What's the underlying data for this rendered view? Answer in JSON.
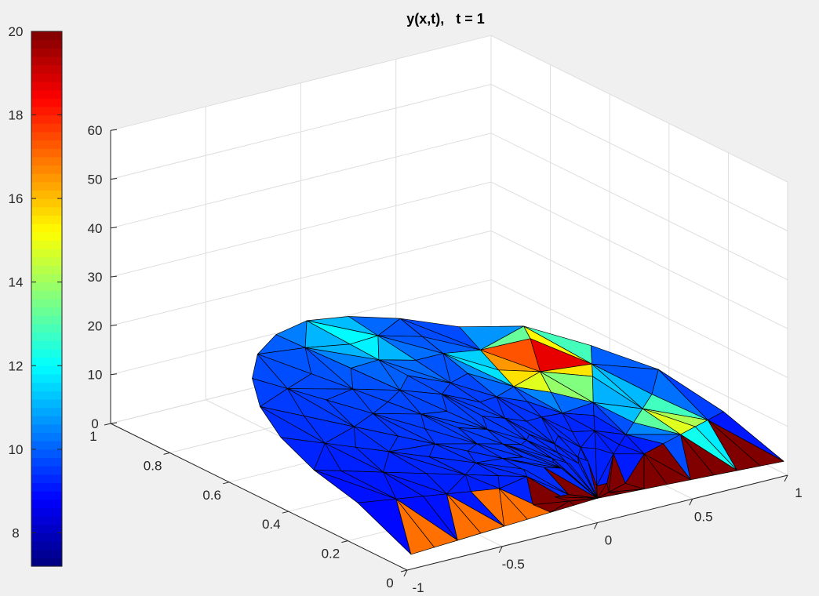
{
  "chart_data": {
    "type": "surface",
    "title": "y(x,t),   t = 1",
    "x_axis": {
      "ticks": [
        -1,
        -0.5,
        0,
        0.5,
        1
      ],
      "tick_labels": [
        "-1",
        "-0.5",
        "0",
        "0.5",
        "1"
      ]
    },
    "y_axis": {
      "ticks": [
        0,
        0.2,
        0.4,
        0.6,
        0.8,
        1
      ],
      "tick_labels": [
        "0",
        "0.2",
        "0.4",
        "0.6",
        "0.8",
        "1"
      ]
    },
    "z_axis": {
      "ticks": [
        0,
        10,
        20,
        30,
        40,
        50,
        60
      ],
      "tick_labels": [
        "0",
        "10",
        "20",
        "30",
        "40",
        "50",
        "60"
      ]
    },
    "colorbar": {
      "range": [
        7.2,
        20
      ],
      "ticks": [
        8,
        10,
        12,
        14,
        16,
        18,
        20
      ],
      "tick_labels": [
        "8",
        "10",
        "12",
        "14",
        "16",
        "18",
        "20"
      ],
      "colormap": "jet"
    },
    "grid": true,
    "surface_value_range": [
      7.2,
      20
    ],
    "surface_shape": "triangulated surface over a half-disc (y >= 0) domain, mostly 8-11 with hot values (20) along the y = 0 edge near x > 0 and near x = 0.8"
  }
}
